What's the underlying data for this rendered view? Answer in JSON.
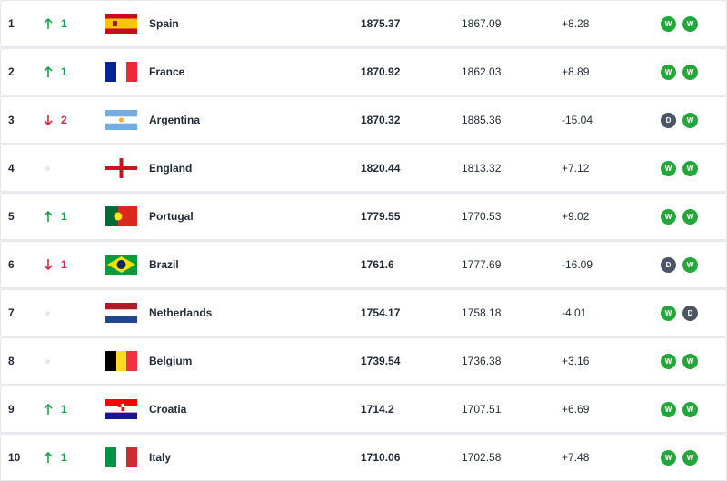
{
  "table": {
    "rows": [
      {
        "rank": "1",
        "trend": "up",
        "move": "1",
        "country": "Spain",
        "points": "1875.37",
        "previous": "1867.09",
        "change": "+8.28",
        "form": [
          "W",
          "W"
        ]
      },
      {
        "rank": "2",
        "trend": "up",
        "move": "1",
        "country": "France",
        "points": "1870.92",
        "previous": "1862.03",
        "change": "+8.89",
        "form": [
          "W",
          "W"
        ]
      },
      {
        "rank": "3",
        "trend": "down",
        "move": "2",
        "country": "Argentina",
        "points": "1870.32",
        "previous": "1885.36",
        "change": "-15.04",
        "form": [
          "D",
          "W"
        ]
      },
      {
        "rank": "4",
        "trend": "same",
        "move": null,
        "country": "England",
        "points": "1820.44",
        "previous": "1813.32",
        "change": "+7.12",
        "form": [
          "W",
          "W"
        ]
      },
      {
        "rank": "5",
        "trend": "up",
        "move": "1",
        "country": "Portugal",
        "points": "1779.55",
        "previous": "1770.53",
        "change": "+9.02",
        "form": [
          "W",
          "W"
        ]
      },
      {
        "rank": "6",
        "trend": "down",
        "move": "1",
        "country": "Brazil",
        "points": "1761.6",
        "previous": "1777.69",
        "change": "-16.09",
        "form": [
          "D",
          "W"
        ]
      },
      {
        "rank": "7",
        "trend": "same",
        "move": null,
        "country": "Netherlands",
        "points": "1754.17",
        "previous": "1758.18",
        "change": "-4.01",
        "form": [
          "W",
          "D"
        ]
      },
      {
        "rank": "8",
        "trend": "same",
        "move": null,
        "country": "Belgium",
        "points": "1739.54",
        "previous": "1736.38",
        "change": "+3.16",
        "form": [
          "W",
          "W"
        ]
      },
      {
        "rank": "9",
        "trend": "up",
        "move": "1",
        "country": "Croatia",
        "points": "1714.2",
        "previous": "1707.51",
        "change": "+6.69",
        "form": [
          "W",
          "W"
        ]
      },
      {
        "rank": "10",
        "trend": "up",
        "move": "1",
        "country": "Italy",
        "points": "1710.06",
        "previous": "1702.58",
        "change": "+7.48",
        "form": [
          "W",
          "W"
        ]
      }
    ]
  }
}
